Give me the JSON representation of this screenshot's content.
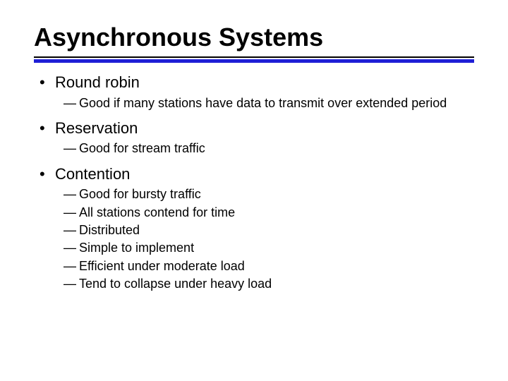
{
  "colors": {
    "background": "#ffffff",
    "text": "#000000",
    "accent_rule": "#1f1fd6"
  },
  "typography": {
    "title_font": "Arial Black / Arial",
    "title_weight": 900,
    "title_size_pt": 28,
    "body_font": "Verdana",
    "level1_size_pt": 17,
    "level2_size_pt": 14
  },
  "slide": {
    "title": "Asynchronous Systems",
    "bullets": [
      {
        "label": "Round robin",
        "subs": [
          "Good if many stations have data to transmit over extended period"
        ]
      },
      {
        "label": "Reservation",
        "subs": [
          "Good for stream traffic"
        ]
      },
      {
        "label": "Contention",
        "subs": [
          "Good for bursty traffic",
          "All stations contend for time",
          "Distributed",
          "Simple to implement",
          "Efficient under moderate load",
          "Tend to collapse under heavy load"
        ]
      }
    ]
  },
  "glyphs": {
    "level1_bullet": "•",
    "level2_dash": "—"
  }
}
